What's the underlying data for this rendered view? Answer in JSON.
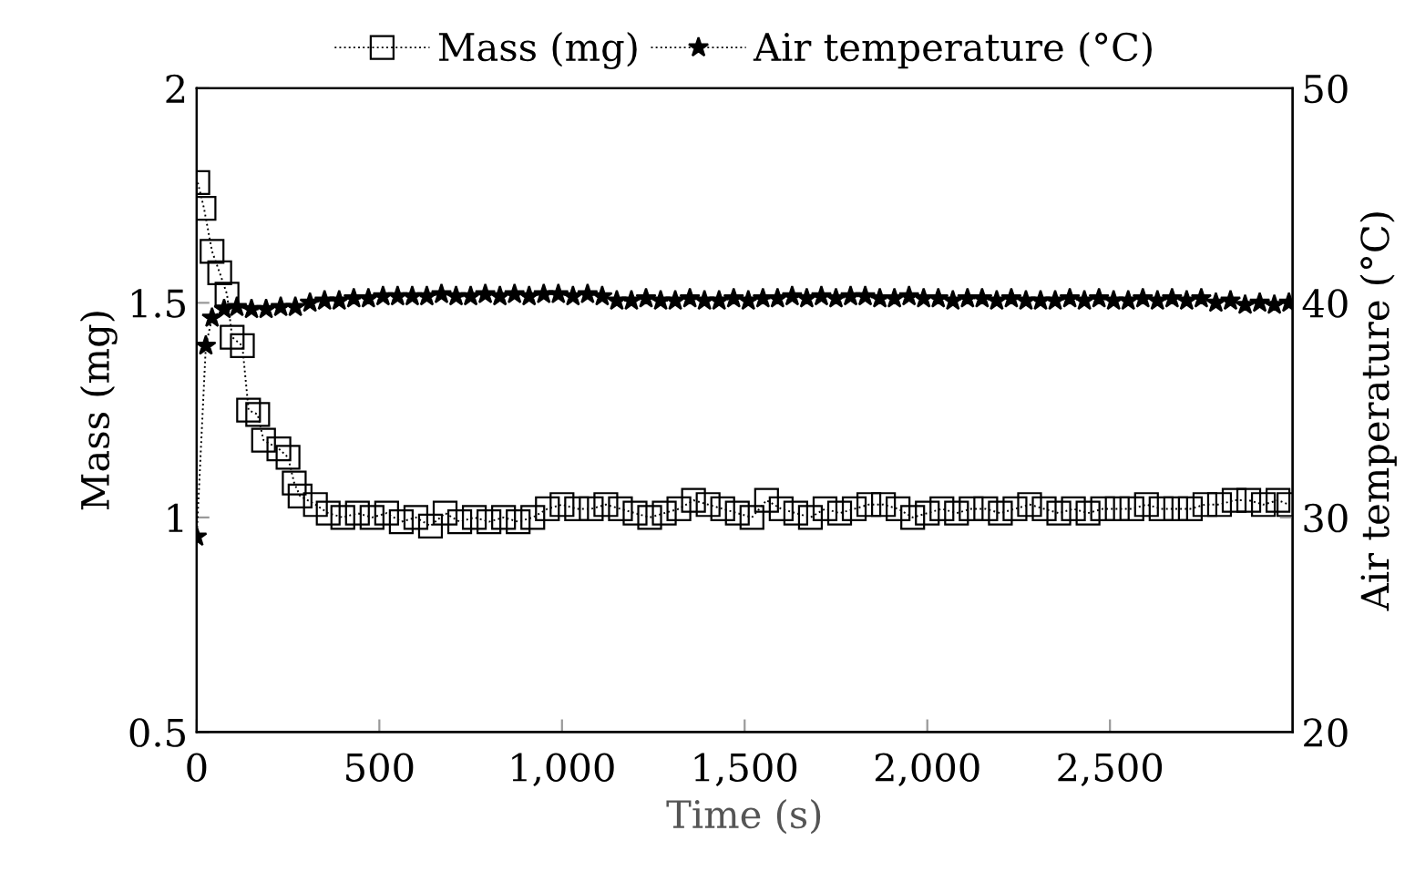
{
  "chart_data": {
    "type": "line",
    "xlabel": "Time (s)",
    "ylabel": "Mass (mg)",
    "y2label": "Air temperature (°C)",
    "xlim": [
      0,
      3000
    ],
    "xticks": [
      0,
      500,
      {
        "value": 1000,
        "label": "1,000"
      },
      {
        "value": 1500,
        "label": "1,500"
      },
      {
        "value": 2000,
        "label": "2,000"
      },
      {
        "value": 2500,
        "label": "2,500"
      }
    ],
    "ylim": [
      0.5,
      2
    ],
    "yticks": [
      0.5,
      1,
      1.5,
      2
    ],
    "y2lim": [
      20,
      50
    ],
    "y2ticks": [
      20,
      30,
      40,
      50
    ],
    "grid": false,
    "legend": "top",
    "line_style": "dotted",
    "series": [
      {
        "name": "Mass (mg)",
        "color": "#000000",
        "marker": "square",
        "x": [
          3,
          20,
          42,
          63,
          83,
          97,
          125,
          142,
          167,
          183,
          225,
          250,
          267,
          283,
          325,
          360,
          400,
          440,
          480,
          520,
          560,
          600,
          640,
          680,
          720,
          760,
          800,
          840,
          880,
          920,
          960,
          1000,
          1040,
          1080,
          1120,
          1160,
          1200,
          1240,
          1280,
          1320,
          1360,
          1400,
          1440,
          1480,
          1520,
          1560,
          1600,
          1640,
          1680,
          1720,
          1760,
          1800,
          1840,
          1880,
          1920,
          1960,
          2000,
          2040,
          2080,
          2120,
          2160,
          2200,
          2240,
          2280,
          2320,
          2360,
          2400,
          2440,
          2480,
          2520,
          2560,
          2600,
          2640,
          2680,
          2720,
          2760,
          2800,
          2840,
          2880,
          2920,
          2960,
          2990
        ],
        "values": [
          1.78,
          1.72,
          1.62,
          1.57,
          1.52,
          1.42,
          1.4,
          1.25,
          1.24,
          1.18,
          1.16,
          1.14,
          1.08,
          1.05,
          1.03,
          1.01,
          1.0,
          1.01,
          1.0,
          1.01,
          0.99,
          1.0,
          0.98,
          1.01,
          0.99,
          1.0,
          0.99,
          1.0,
          0.99,
          1.0,
          1.02,
          1.03,
          1.02,
          1.02,
          1.03,
          1.02,
          1.01,
          1.0,
          1.01,
          1.02,
          1.04,
          1.03,
          1.02,
          1.01,
          1.0,
          1.04,
          1.02,
          1.01,
          1.0,
          1.02,
          1.01,
          1.02,
          1.03,
          1.03,
          1.02,
          1.0,
          1.01,
          1.02,
          1.01,
          1.02,
          1.02,
          1.01,
          1.02,
          1.03,
          1.02,
          1.01,
          1.02,
          1.01,
          1.02,
          1.02,
          1.02,
          1.03,
          1.02,
          1.02,
          1.02,
          1.03,
          1.03,
          1.04,
          1.04,
          1.03,
          1.04,
          1.03
        ]
      },
      {
        "name": "Air temperature (°C)",
        "color": "#000000",
        "marker": "star",
        "axis": "y2",
        "x": [
          0,
          25,
          42,
          75,
          110,
          150,
          190,
          230,
          270,
          310,
          350,
          390,
          430,
          470,
          510,
          550,
          590,
          630,
          670,
          710,
          750,
          790,
          830,
          870,
          910,
          950,
          990,
          1030,
          1070,
          1110,
          1150,
          1190,
          1230,
          1270,
          1310,
          1350,
          1390,
          1430,
          1470,
          1510,
          1550,
          1590,
          1630,
          1670,
          1710,
          1750,
          1790,
          1830,
          1870,
          1910,
          1950,
          1990,
          2030,
          2070,
          2110,
          2150,
          2190,
          2230,
          2270,
          2310,
          2350,
          2390,
          2430,
          2470,
          2510,
          2550,
          2590,
          2630,
          2670,
          2710,
          2750,
          2790,
          2830,
          2870,
          2910,
          2950,
          2990
        ],
        "values": [
          29.1,
          38.0,
          39.3,
          39.7,
          39.8,
          39.7,
          39.7,
          39.8,
          39.8,
          40.0,
          40.1,
          40.1,
          40.2,
          40.2,
          40.3,
          40.3,
          40.3,
          40.3,
          40.4,
          40.3,
          40.3,
          40.4,
          40.3,
          40.4,
          40.3,
          40.4,
          40.4,
          40.3,
          40.4,
          40.3,
          40.1,
          40.1,
          40.2,
          40.1,
          40.1,
          40.2,
          40.1,
          40.1,
          40.2,
          40.1,
          40.2,
          40.2,
          40.3,
          40.2,
          40.3,
          40.2,
          40.3,
          40.3,
          40.2,
          40.2,
          40.3,
          40.2,
          40.2,
          40.1,
          40.2,
          40.2,
          40.1,
          40.2,
          40.1,
          40.1,
          40.1,
          40.2,
          40.1,
          40.2,
          40.1,
          40.1,
          40.2,
          40.1,
          40.2,
          40.1,
          40.2,
          40.0,
          40.1,
          39.9,
          40.0,
          39.9,
          40.0
        ]
      }
    ]
  }
}
